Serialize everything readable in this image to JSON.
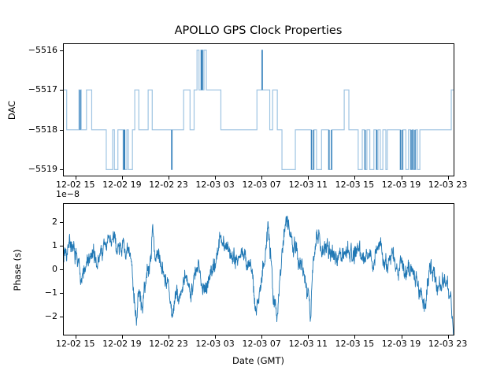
{
  "figure": {
    "title": "APOLLO GPS Clock Properties",
    "xlabel": "Date (GMT)",
    "background_color": "#ffffff",
    "spine_color": "#000000",
    "text_color": "#000000"
  },
  "chart_data": [
    {
      "type": "line",
      "subplot": "top",
      "ylabel": "DAC",
      "line_style": "step-post",
      "line_color": "#9ec4e2",
      "overlap_spike_color": "#2f7cb8",
      "grid": false,
      "legend": "none",
      "x_axis_note": "hours after 12-02 14:00 GMT",
      "xlim": [
        0,
        33.5
      ],
      "ylim": [
        -5519.15,
        -5515.85
      ],
      "yticks": {
        "values": [
          -5516,
          -5517,
          -5518,
          -5519
        ],
        "labels": [
          "−5516",
          "−5517",
          "−5518",
          "−5519"
        ]
      },
      "xticks": {
        "values": [
          1,
          5,
          9,
          13,
          17,
          21,
          25,
          29,
          33
        ],
        "labels": [
          "12-02 15",
          "12-02 19",
          "12-02 23",
          "12-03 03",
          "12-03 07",
          "12-03 11",
          "12-03 15",
          "12-03 19",
          "12-03 23"
        ]
      },
      "steps": [
        [
          0.0,
          -5517
        ],
        [
          0.25,
          -5518
        ],
        [
          1.3,
          -5517
        ],
        [
          1.38,
          -5518
        ],
        [
          1.42,
          -5517
        ],
        [
          1.5,
          -5518
        ],
        [
          1.95,
          -5517
        ],
        [
          2.4,
          -5518
        ],
        [
          3.65,
          -5519
        ],
        [
          4.2,
          -5518
        ],
        [
          4.35,
          -5519
        ],
        [
          4.65,
          -5518
        ],
        [
          5.1,
          -5519
        ],
        [
          5.18,
          -5518
        ],
        [
          5.25,
          -5519
        ],
        [
          5.42,
          -5518
        ],
        [
          5.55,
          -5519
        ],
        [
          5.9,
          -5518
        ],
        [
          6.1,
          -5517
        ],
        [
          6.45,
          -5518
        ],
        [
          7.25,
          -5517
        ],
        [
          7.6,
          -5518
        ],
        [
          9.25,
          -5519
        ],
        [
          9.32,
          -5518
        ],
        [
          10.3,
          -5517
        ],
        [
          10.85,
          -5518
        ],
        [
          11.2,
          -5517
        ],
        [
          11.45,
          -5516
        ],
        [
          11.62,
          -5517
        ],
        [
          11.78,
          -5516
        ],
        [
          11.84,
          -5517
        ],
        [
          11.88,
          -5516
        ],
        [
          11.95,
          -5517
        ],
        [
          12.05,
          -5516
        ],
        [
          12.25,
          -5517
        ],
        [
          13.5,
          -5518
        ],
        [
          16.6,
          -5517
        ],
        [
          17.02,
          -5516
        ],
        [
          17.08,
          -5517
        ],
        [
          17.7,
          -5518
        ],
        [
          17.95,
          -5517
        ],
        [
          18.35,
          -5518
        ],
        [
          18.75,
          -5519
        ],
        [
          19.9,
          -5518
        ],
        [
          21.25,
          -5519
        ],
        [
          21.5,
          -5518
        ],
        [
          21.72,
          -5519
        ],
        [
          22.15,
          -5518
        ],
        [
          22.75,
          -5519
        ],
        [
          23.05,
          -5518
        ],
        [
          24.1,
          -5517
        ],
        [
          24.5,
          -5518
        ],
        [
          25.3,
          -5519
        ],
        [
          25.65,
          -5518
        ],
        [
          25.85,
          -5519
        ],
        [
          26.05,
          -5518
        ],
        [
          26.3,
          -5519
        ],
        [
          26.65,
          -5518
        ],
        [
          26.85,
          -5519
        ],
        [
          27.0,
          -5518
        ],
        [
          27.2,
          -5519
        ],
        [
          27.42,
          -5518
        ],
        [
          27.68,
          -5519
        ],
        [
          27.8,
          -5518
        ],
        [
          28.9,
          -5519
        ],
        [
          29.15,
          -5518
        ],
        [
          29.4,
          -5519
        ],
        [
          29.62,
          -5518
        ],
        [
          29.8,
          -5519
        ],
        [
          29.95,
          -5518
        ],
        [
          30.05,
          -5519
        ],
        [
          30.25,
          -5518
        ],
        [
          30.4,
          -5519
        ],
        [
          30.6,
          -5518
        ],
        [
          33.3,
          -5517
        ],
        [
          33.5,
          -5517
        ]
      ],
      "overlap_spikes": [
        [
          1.4,
          -5517,
          -5518
        ],
        [
          5.15,
          -5518,
          -5519
        ],
        [
          5.23,
          -5518,
          -5519
        ],
        [
          9.28,
          -5518,
          -5519
        ],
        [
          11.83,
          -5517,
          -5516
        ],
        [
          11.9,
          -5517,
          -5516
        ],
        [
          17.05,
          -5517,
          -5516
        ],
        [
          21.3,
          -5518,
          -5519
        ],
        [
          21.47,
          -5518,
          -5519
        ],
        [
          22.8,
          -5518,
          -5519
        ],
        [
          23.0,
          -5518,
          -5519
        ],
        [
          25.9,
          -5518,
          -5519
        ],
        [
          26.9,
          -5518,
          -5519
        ],
        [
          28.95,
          -5518,
          -5519
        ],
        [
          29.1,
          -5518,
          -5519
        ],
        [
          29.85,
          -5518,
          -5519
        ],
        [
          30.0,
          -5518,
          -5519
        ],
        [
          30.18,
          -5518,
          -5519
        ]
      ]
    },
    {
      "type": "line",
      "subplot": "bottom",
      "ylabel": "Phase (s)",
      "offset_label": "1e−8",
      "line_color": "#1f77b4",
      "grid": false,
      "legend": "none",
      "x_axis_note": "hours after 12-02 14:00 GMT",
      "xlim": [
        0,
        33.5
      ],
      "ylim": [
        -2.77,
        2.77
      ],
      "yticks": {
        "values": [
          2,
          1,
          0,
          -1,
          -2
        ],
        "labels": [
          "2",
          "1",
          "0",
          "−1",
          "−2"
        ]
      },
      "xticks": {
        "values": [
          1,
          5,
          9,
          13,
          17,
          21,
          25,
          29,
          33
        ],
        "labels": [
          "12-02 15",
          "12-02 19",
          "12-02 23",
          "12-03 03",
          "12-03 07",
          "12-03 11",
          "12-03 15",
          "12-03 19",
          "12-03 23"
        ]
      },
      "units_scale": "1e-8 s",
      "trend_anchors": [
        [
          0,
          0.7
        ],
        [
          0.35,
          1.05
        ],
        [
          0.5,
          1.6
        ],
        [
          0.8,
          0.55
        ],
        [
          1.2,
          0.25
        ],
        [
          1.6,
          -0.3
        ],
        [
          2.0,
          0.15
        ],
        [
          2.4,
          0.5
        ],
        [
          2.8,
          0.2
        ],
        [
          3.2,
          0.75
        ],
        [
          3.7,
          1.1
        ],
        [
          4.1,
          1.25
        ],
        [
          4.5,
          0.95
        ],
        [
          4.9,
          1.25
        ],
        [
          5.3,
          0.8
        ],
        [
          5.7,
          0.35
        ],
        [
          6.0,
          -0.7
        ],
        [
          6.25,
          -2.0
        ],
        [
          6.45,
          -1.0
        ],
        [
          6.7,
          -1.7
        ],
        [
          7.0,
          -0.6
        ],
        [
          7.4,
          0.2
        ],
        [
          7.68,
          1.85
        ],
        [
          7.85,
          0.5
        ],
        [
          8.2,
          0.55
        ],
        [
          8.6,
          0.15
        ],
        [
          9.0,
          -0.8
        ],
        [
          9.3,
          -2.35
        ],
        [
          9.55,
          -1.1
        ],
        [
          9.9,
          -1.35
        ],
        [
          10.3,
          -0.55
        ],
        [
          10.7,
          -0.85
        ],
        [
          11.1,
          -0.35
        ],
        [
          11.6,
          -0.15
        ],
        [
          12.1,
          -0.6
        ],
        [
          12.6,
          -0.25
        ],
        [
          13.1,
          0.5
        ],
        [
          13.4,
          1.1
        ],
        [
          13.75,
          1.3
        ],
        [
          14.2,
          0.75
        ],
        [
          14.7,
          0.55
        ],
        [
          15.2,
          0.8
        ],
        [
          15.7,
          0.35
        ],
        [
          16.1,
          -0.1
        ],
        [
          16.55,
          -1.9
        ],
        [
          16.8,
          -0.8
        ],
        [
          17.2,
          0.6
        ],
        [
          17.55,
          1.8
        ],
        [
          17.8,
          0.3
        ],
        [
          18.05,
          -1.3
        ],
        [
          18.3,
          -2.25
        ],
        [
          18.55,
          -0.3
        ],
        [
          18.9,
          1.5
        ],
        [
          19.2,
          2.45
        ],
        [
          19.5,
          1.7
        ],
        [
          19.9,
          1.0
        ],
        [
          20.3,
          0.45
        ],
        [
          20.7,
          -0.3
        ],
        [
          21.0,
          -1.2
        ],
        [
          21.2,
          -2.15
        ],
        [
          21.45,
          0.3
        ],
        [
          21.75,
          1.95
        ],
        [
          22.1,
          0.9
        ],
        [
          22.5,
          0.55
        ],
        [
          22.9,
          0.9
        ],
        [
          23.3,
          0.45
        ],
        [
          23.7,
          0.9
        ],
        [
          24.1,
          0.6
        ],
        [
          24.5,
          1.0
        ],
        [
          24.9,
          0.65
        ],
        [
          25.3,
          1.05
        ],
        [
          25.7,
          0.5
        ],
        [
          26.1,
          0.8
        ],
        [
          26.5,
          0.35
        ],
        [
          26.9,
          0.75
        ],
        [
          27.2,
          1.25
        ],
        [
          27.5,
          0.35
        ],
        [
          27.9,
          0.1
        ],
        [
          28.3,
          0.45
        ],
        [
          28.7,
          -0.15
        ],
        [
          29.1,
          0.25
        ],
        [
          29.5,
          -0.25
        ],
        [
          29.9,
          0.15
        ],
        [
          30.3,
          -0.4
        ],
        [
          30.7,
          -0.9
        ],
        [
          31.0,
          -1.55
        ],
        [
          31.3,
          -0.5
        ],
        [
          31.7,
          -0.1
        ],
        [
          32.1,
          -0.45
        ],
        [
          32.5,
          -0.2
        ],
        [
          32.9,
          -0.7
        ],
        [
          33.2,
          -1.1
        ],
        [
          33.5,
          -2.35
        ]
      ],
      "noise": {
        "amplitude": 0.78,
        "samples": 1600,
        "seed": 7
      }
    }
  ]
}
